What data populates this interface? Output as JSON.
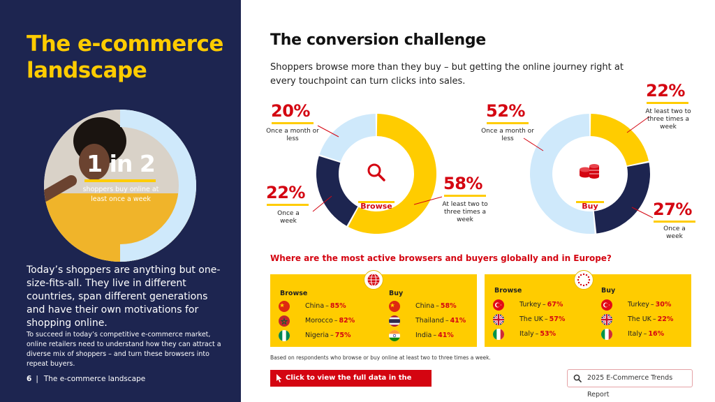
{
  "left": {
    "title": "The e-commerce landscape",
    "hero": {
      "big": "1 in 2",
      "sub": "shoppers buy online at least once a week",
      "fraction": 0.5
    },
    "p1": "Today’s shoppers are anything but one-size-fits-all. They live in different countries, span different generations and have their own motivations for shopping online.",
    "p2": "To succeed in today’s competitive e-commerce market, online retailers need to understand how they can attract a diverse mix of shoppers – and turn these browsers into repeat buyers.",
    "footer": {
      "page": "6",
      "sep": "|",
      "section": "The e-commerce landscape"
    }
  },
  "main": {
    "title": "The conversion challenge",
    "intro": "Shoppers browse more than they buy – but getting the online journey right at every touchpoint can turn clicks into sales."
  },
  "chart_data": [
    {
      "type": "pie",
      "title": "Browse",
      "categories": [
        "At least two to three times a week",
        "Once a week",
        "Once a month or less"
      ],
      "values": [
        58,
        22,
        20
      ],
      "labels": [
        "58%",
        "22%",
        "20%"
      ]
    },
    {
      "type": "pie",
      "title": "Buy",
      "categories": [
        "At least two to three times a week",
        "Once a week",
        "Once a month or less"
      ],
      "values": [
        22,
        27,
        52
      ],
      "labels": [
        "22%",
        "27%",
        "52%"
      ]
    }
  ],
  "colors": {
    "yellow": "#ffcc00",
    "navy": "#1d2550",
    "light": "#cfe9fb",
    "red": "#d40511"
  },
  "question": "Where are the most active browsers and buyers globally and in Europe?",
  "global": {
    "icon": "globe-icon",
    "browse_head": "Browse",
    "buy_head": "Buy",
    "browse": [
      {
        "country": "China",
        "value": "85%",
        "flag": "china"
      },
      {
        "country": "Morocco",
        "value": "82%",
        "flag": "morocco"
      },
      {
        "country": "Nigeria",
        "value": "75%",
        "flag": "nigeria"
      }
    ],
    "buy": [
      {
        "country": "China",
        "value": "58%",
        "flag": "china"
      },
      {
        "country": "Thailand",
        "value": "41%",
        "flag": "thailand"
      },
      {
        "country": "India",
        "value": "41%",
        "flag": "india"
      }
    ]
  },
  "europe": {
    "icon": "eu-stars-icon",
    "browse_head": "Browse",
    "buy_head": "Buy",
    "browse": [
      {
        "country": "Turkey",
        "value": "67%",
        "flag": "turkey"
      },
      {
        "country": "The UK",
        "value": "57%",
        "flag": "uk"
      },
      {
        "country": "Italy",
        "value": "53%",
        "flag": "italy"
      }
    ],
    "buy": [
      {
        "country": "Turkey",
        "value": "30%",
        "flag": "turkey"
      },
      {
        "country": "The UK",
        "value": "22%",
        "flag": "uk"
      },
      {
        "country": "Italy",
        "value": "16%",
        "flag": "italy"
      }
    ]
  },
  "dash": "–",
  "footnote": "Based on respondents who browse or buy online at least two to three times a week.",
  "cta": "Click to view the full data in the appendix",
  "report": "2025 E-Commerce Trends Report"
}
